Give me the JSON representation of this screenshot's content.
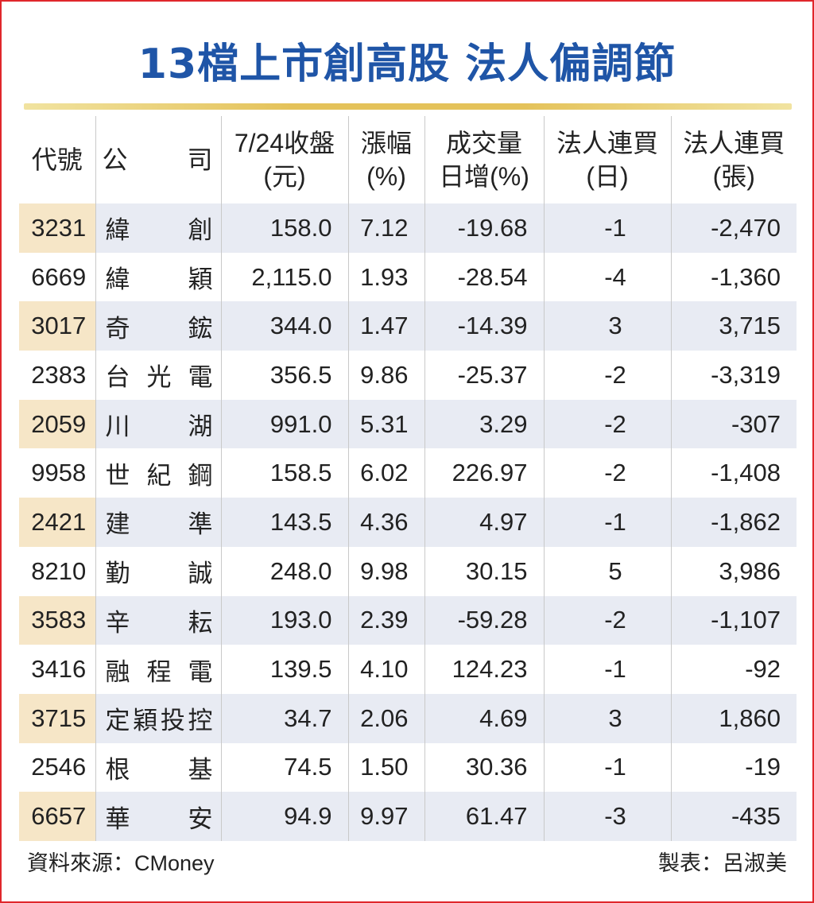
{
  "title": "13檔上市創高股 法人偏調節",
  "table": {
    "headers": {
      "code": "代號",
      "company": "公司",
      "close_l1": "7/24收盤",
      "close_l2": "(元)",
      "change_l1": "漲幅",
      "change_l2": "(%)",
      "volume_l1": "成交量",
      "volume_l2": "日增(%)",
      "days_l1": "法人連買",
      "days_l2": "(日)",
      "lots_l1": "法人連買",
      "lots_l2": "(張)"
    },
    "rows": [
      {
        "code": "3231",
        "company": "緯創",
        "close": "158.0",
        "change": "7.12",
        "volume": "-19.68",
        "days": "-1",
        "lots": "-2,470"
      },
      {
        "code": "6669",
        "company": "緯穎",
        "close": "2,115.0",
        "change": "1.93",
        "volume": "-28.54",
        "days": "-4",
        "lots": "-1,360"
      },
      {
        "code": "3017",
        "company": "奇鋐",
        "close": "344.0",
        "change": "1.47",
        "volume": "-14.39",
        "days": "3",
        "lots": "3,715"
      },
      {
        "code": "2383",
        "company": "台光電",
        "close": "356.5",
        "change": "9.86",
        "volume": "-25.37",
        "days": "-2",
        "lots": "-3,319"
      },
      {
        "code": "2059",
        "company": "川湖",
        "close": "991.0",
        "change": "5.31",
        "volume": "3.29",
        "days": "-2",
        "lots": "-307"
      },
      {
        "code": "9958",
        "company": "世紀鋼",
        "close": "158.5",
        "change": "6.02",
        "volume": "226.97",
        "days": "-2",
        "lots": "-1,408"
      },
      {
        "code": "2421",
        "company": "建準",
        "close": "143.5",
        "change": "4.36",
        "volume": "4.97",
        "days": "-1",
        "lots": "-1,862"
      },
      {
        "code": "8210",
        "company": "勤誠",
        "close": "248.0",
        "change": "9.98",
        "volume": "30.15",
        "days": "5",
        "lots": "3,986"
      },
      {
        "code": "3583",
        "company": "辛耘",
        "close": "193.0",
        "change": "2.39",
        "volume": "-59.28",
        "days": "-2",
        "lots": "-1,107"
      },
      {
        "code": "3416",
        "company": "融程電",
        "close": "139.5",
        "change": "4.10",
        "volume": "124.23",
        "days": "-1",
        "lots": "-92"
      },
      {
        "code": "3715",
        "company": "定穎投控",
        "close": "34.7",
        "change": "2.06",
        "volume": "4.69",
        "days": "3",
        "lots": "1,860"
      },
      {
        "code": "2546",
        "company": "根基",
        "close": "74.5",
        "change": "1.50",
        "volume": "30.36",
        "days": "-1",
        "lots": "-19"
      },
      {
        "code": "6657",
        "company": "華安",
        "close": "94.9",
        "change": "9.97",
        "volume": "61.47",
        "days": "-3",
        "lots": "-435"
      }
    ]
  },
  "footer": {
    "source": "資料來源：CMoney",
    "author": "製表：呂淑美"
  },
  "colors": {
    "title": "#1f55a7",
    "frame": "#e0262b",
    "row_shade": "#e8ebf3",
    "code_shade": "#f6e6c7",
    "rule_gold": "#e4c25a"
  }
}
